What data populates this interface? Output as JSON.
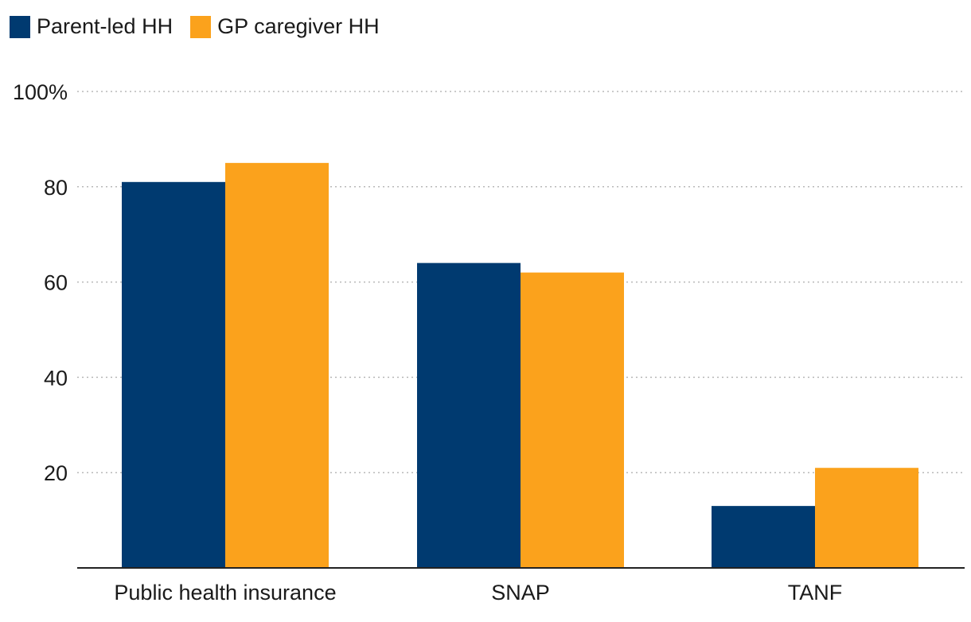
{
  "colors": {
    "parent": "#003a70",
    "gp": "#fba21c",
    "grid": "#b8b8b8",
    "axis": "#222222"
  },
  "legend": {
    "parent_label": "Parent-led HH",
    "gp_label": "GP caregiver HH"
  },
  "chart_data": {
    "type": "bar",
    "title": "",
    "xlabel": "",
    "ylabel": "",
    "categories": [
      "Public health insurance",
      "SNAP",
      "TANF"
    ],
    "series": [
      {
        "name": "Parent-led HH",
        "values": [
          81,
          64,
          13
        ]
      },
      {
        "name": "GP caregiver HH",
        "values": [
          85,
          62,
          21
        ]
      }
    ],
    "ylim": [
      0,
      100
    ],
    "yticks": [
      20,
      40,
      60,
      80,
      100
    ],
    "ytick_labels": [
      "20",
      "40",
      "60",
      "80",
      "100%"
    ],
    "grid": true,
    "legend_position": "top-left"
  }
}
